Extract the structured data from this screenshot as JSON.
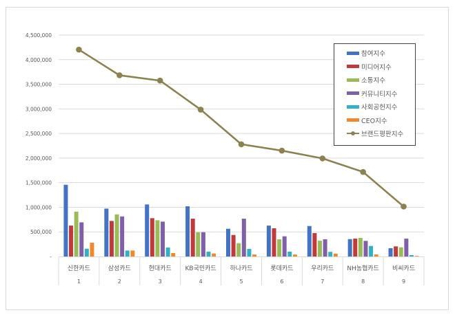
{
  "chart_data": {
    "type": "bar+line",
    "title": "",
    "xlabel": "",
    "ylabel": "",
    "ylim": [
      0,
      4500000
    ],
    "yticks": [
      "-",
      "500,000",
      "1,000,000",
      "1,500,000",
      "2,000,000",
      "2,500,000",
      "3,000,000",
      "3,500,000",
      "4,000,000",
      "4,500,000"
    ],
    "grid": true,
    "legend_position": "upper right (inside)",
    "categories": [
      "신한카드",
      "삼성카드",
      "현대카드",
      "KB국민카드",
      "하나카드",
      "롯데카드",
      "우리카드",
      "NH농협카드",
      "비씨카드"
    ],
    "ranks": [
      "1",
      "2",
      "3",
      "4",
      "5",
      "6",
      "7",
      "8",
      "9"
    ],
    "series": [
      {
        "name": "참여지수",
        "type": "bar",
        "color": "#4472c4",
        "values": [
          1457000,
          973000,
          1057000,
          1020000,
          563000,
          628000,
          619000,
          353000,
          168000
        ]
      },
      {
        "name": "미디어지수",
        "type": "bar",
        "color": "#c0393b",
        "values": [
          628000,
          722000,
          778000,
          768000,
          437000,
          573000,
          475000,
          363000,
          205000
        ]
      },
      {
        "name": "소통지수",
        "type": "bar",
        "color": "#9bbb59",
        "values": [
          912000,
          856000,
          736000,
          493000,
          270000,
          349000,
          321000,
          377000,
          186000
        ]
      },
      {
        "name": "커뮤니티지수",
        "type": "bar",
        "color": "#7f5fa8",
        "values": [
          694000,
          814000,
          708000,
          493000,
          768000,
          410000,
          349000,
          317000,
          363000
        ]
      },
      {
        "name": "사회공헌지수",
        "type": "bar",
        "color": "#31b0c8",
        "values": [
          158000,
          121000,
          182000,
          98000,
          154000,
          98000,
          94000,
          214000,
          28000
        ]
      },
      {
        "name": "CEO지수",
        "type": "bar",
        "color": "#f0882c",
        "values": [
          279000,
          121000,
          70000,
          60000,
          40000,
          40000,
          56000,
          42000,
          10000
        ]
      },
      {
        "name": "브랜드평판지수",
        "type": "line",
        "color": "#8c8250",
        "values": [
          4204000,
          3683000,
          3575000,
          2985000,
          2281000,
          2151000,
          1993000,
          1718000,
          1015000
        ]
      }
    ]
  }
}
